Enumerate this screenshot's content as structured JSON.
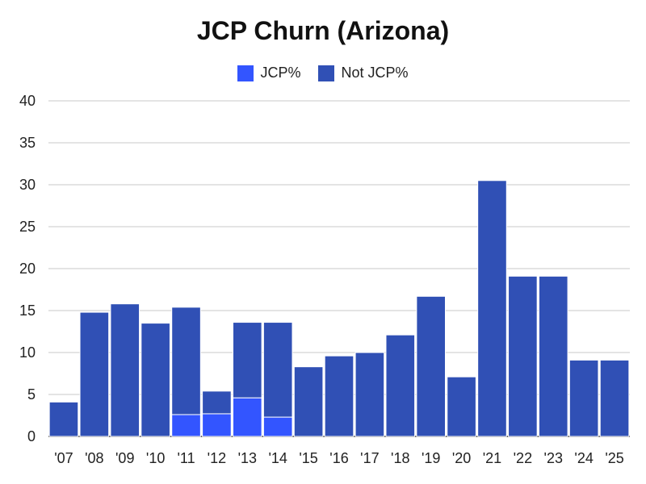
{
  "chart_data": {
    "type": "bar",
    "stacked": true,
    "title": "JCP Churn (Arizona)",
    "xlabel": "",
    "ylabel": "",
    "categories": [
      "'07",
      "'08",
      "'09",
      "'10",
      "'11",
      "'12",
      "'13",
      "'14",
      "'15",
      "'16",
      "'17",
      "'18",
      "'19",
      "'20",
      "'21",
      "'22",
      "'23",
      "'24",
      "'25"
    ],
    "series": [
      {
        "name": "JCP%",
        "color": "#3355ff",
        "values": [
          0,
          0,
          0,
          0,
          2.6,
          2.7,
          4.6,
          2.3,
          0,
          0,
          0,
          0,
          0,
          0,
          0,
          0,
          0,
          0,
          0
        ]
      },
      {
        "name": "Not JCP%",
        "color": "#3050b5",
        "values": [
          4.1,
          14.8,
          15.8,
          13.5,
          12.8,
          2.7,
          9.0,
          11.3,
          8.3,
          9.6,
          10.0,
          12.1,
          16.7,
          7.1,
          30.5,
          19.1,
          19.1,
          9.1,
          9.1
        ]
      }
    ],
    "ylim": [
      0,
      40
    ],
    "yticks": [
      0,
      5,
      10,
      15,
      20,
      25,
      30,
      35,
      40
    ],
    "grid": true,
    "legend_position": "top"
  }
}
